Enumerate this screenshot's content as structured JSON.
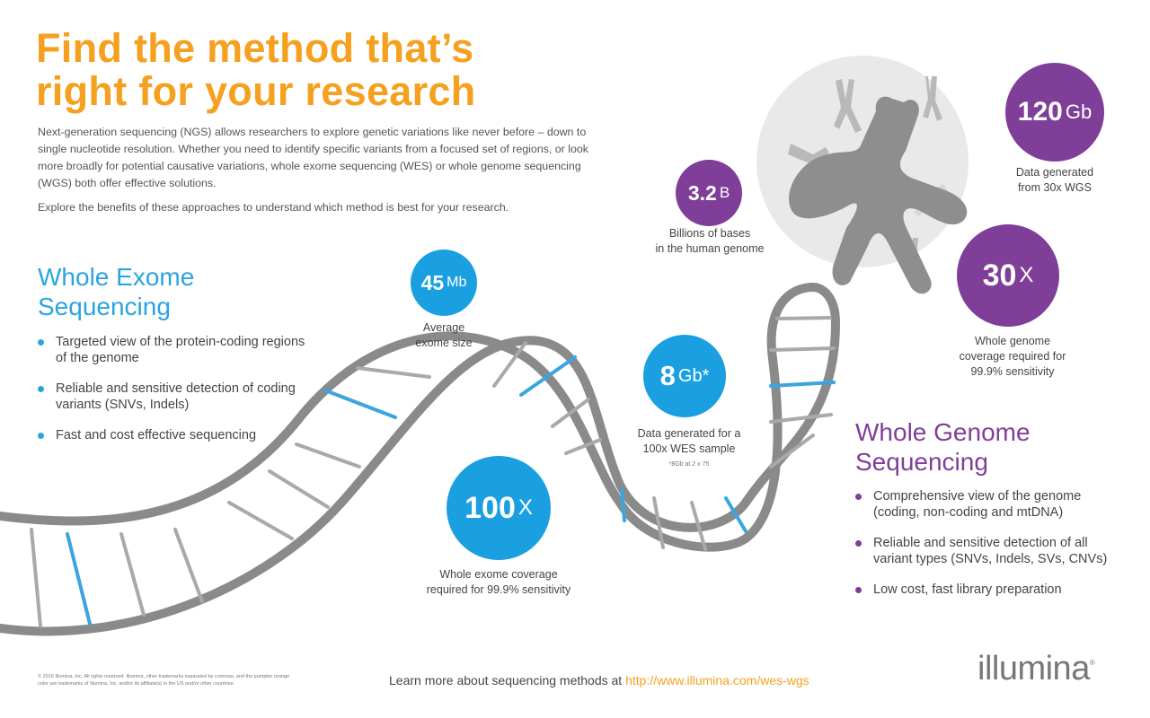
{
  "title": {
    "line1": "Find the method that’s",
    "line2": "right for your research"
  },
  "intro": {
    "paragraph1": "Next-generation sequencing (NGS) allows researchers to explore genetic variations like never before – down to single nucleotide resolution. Whether you need to identify specific variants from a focused set of regions, or look more broadly for potential causative variations, whole exome sequencing (WES) or whole genome sequencing (WGS) both offer effective solutions.",
    "paragraph2": "Explore the benefits of these approaches to understand which method is best for your research."
  },
  "wes": {
    "title_line1": "Whole Exome",
    "title_line2": "Sequencing",
    "bullets": [
      "Targeted view of the protein-coding regions of the genome",
      "Reliable and sensitive detection of coding variants (SNVs, Indels)",
      "Fast and cost effective sequencing"
    ]
  },
  "wgs": {
    "title_line1": "Whole Genome",
    "title_line2": "Sequencing",
    "bullets": [
      "Comprehensive view of the genome (coding, non-coding and mtDNA)",
      "Reliable and sensitive detection of all variant types (SNVs, Indels, SVs, CNVs)",
      "Low cost, fast library preparation"
    ]
  },
  "stats": {
    "exome_size": {
      "value": "45",
      "unit": "Mb",
      "label_line1": "Average",
      "label_line2": "exome size"
    },
    "wes_coverage": {
      "value": "100",
      "unit": "X",
      "label_line1": "Whole exome coverage",
      "label_line2": "required for 99.9% sensitivity"
    },
    "wes_data": {
      "value": "8",
      "unit": "Gb*",
      "label_line1": "Data generated for a",
      "label_line2": "100x WES sample",
      "footnote": "*8Gb at 2 x 75"
    },
    "genome_bases": {
      "value": "3.2",
      "unit": "B",
      "label_line1": "Billions of bases",
      "label_line2": "in the human genome"
    },
    "wgs_data": {
      "value": "120",
      "unit": "Gb",
      "label_line1": "Data generated",
      "label_line2": "from 30x WGS"
    },
    "wgs_coverage": {
      "value": "30",
      "unit": "X",
      "label_line1": "Whole genome",
      "label_line2": "coverage required for",
      "label_line3": "99.9% sensitivity"
    }
  },
  "footer": {
    "legal": "© 2016 Illumina, Inc. All rights reserved. Illumina, other trademarks separated by commas, and the pumpkin orange color are trademarks of Illumina, Inc. and/or its affiliate(s) in the US and/or other countries.",
    "learn_more_text": "Learn more about sequencing methods at",
    "learn_more_url": "http://www.illumina.com/wes-wgs",
    "logo_text": "illumina",
    "logo_mark": "®"
  },
  "colors": {
    "orange": "#f5a01e",
    "blue": "#1aa0e0",
    "purple": "#7f3f98",
    "gray": "#777777"
  },
  "icons": {
    "helix": "dna-helix-illustration",
    "chromosome": "chromosome-illustration"
  }
}
